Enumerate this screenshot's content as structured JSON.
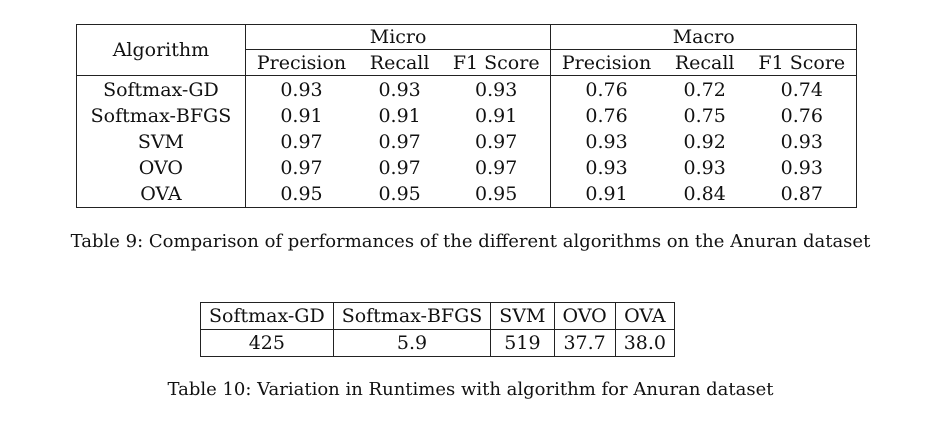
{
  "table9": {
    "algorithm_header": "Algorithm",
    "group_headers": [
      "Micro",
      "Macro"
    ],
    "sub_headers": [
      "Precision",
      "Recall",
      "F1 Score",
      "Precision",
      "Recall",
      "F1 Score"
    ],
    "rows": [
      {
        "name": "Softmax-GD",
        "values": [
          "0.93",
          "0.93",
          "0.93",
          "0.76",
          "0.72",
          "0.74"
        ]
      },
      {
        "name": "Softmax-BFGS",
        "values": [
          "0.91",
          "0.91",
          "0.91",
          "0.76",
          "0.75",
          "0.76"
        ]
      },
      {
        "name": "SVM",
        "values": [
          "0.97",
          "0.97",
          "0.97",
          "0.93",
          "0.92",
          "0.93"
        ]
      },
      {
        "name": "OVO",
        "values": [
          "0.97",
          "0.97",
          "0.97",
          "0.93",
          "0.93",
          "0.93"
        ]
      },
      {
        "name": "OVA",
        "values": [
          "0.95",
          "0.95",
          "0.95",
          "0.91",
          "0.84",
          "0.87"
        ]
      }
    ],
    "caption": "Table 9: Comparison of performances of the different algorithms on the Anuran dataset"
  },
  "table10": {
    "headers": [
      "Softmax-GD",
      "Softmax-BFGS",
      "SVM",
      "OVO",
      "OVA"
    ],
    "values": [
      "425",
      "5.9",
      "519",
      "37.7",
      "38.0"
    ],
    "caption": "Table 10: Variation in Runtimes with algorithm for Anuran dataset"
  }
}
